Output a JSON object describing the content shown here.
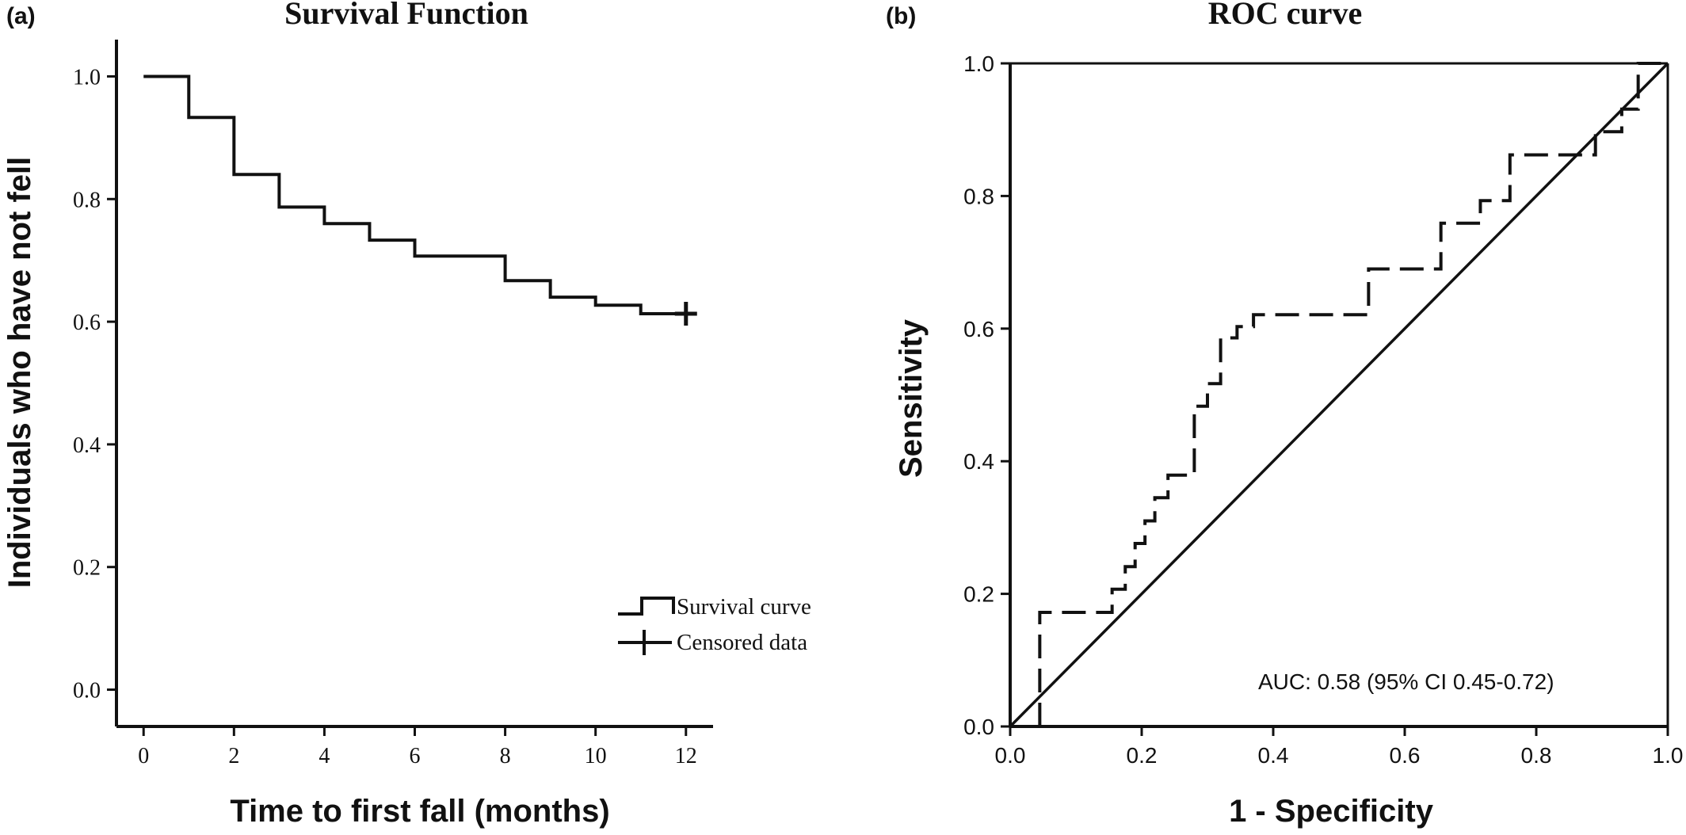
{
  "panel_labels": {
    "a": "(a)",
    "b": "(b)"
  },
  "colors": {
    "ink": "#111111",
    "background": "#ffffff"
  },
  "chart_data": [
    {
      "type": "line",
      "subtype": "step",
      "title": "Survival Function",
      "xlabel": "Time to first fall (months)",
      "ylabel": "Individuals who have not fell",
      "xlim": [
        -0.6,
        12.6
      ],
      "ylim": [
        -0.06,
        1.06
      ],
      "xticks": [
        0,
        2,
        4,
        6,
        8,
        10,
        12
      ],
      "yticks": [
        0.0,
        0.2,
        0.4,
        0.6,
        0.8,
        1.0
      ],
      "xtick_labels": [
        "0",
        "2",
        "4",
        "6",
        "8",
        "10",
        "12"
      ],
      "ytick_labels": [
        "0.0",
        "0.2",
        "0.4",
        "0.6",
        "0.8",
        "1.0"
      ],
      "grid": false,
      "legend_position": "bottom-right",
      "legend": [
        "Survival curve",
        "Censored data"
      ],
      "series": [
        {
          "name": "Survival curve",
          "x": [
            0,
            1,
            2,
            3,
            4,
            5,
            6,
            8,
            9,
            10,
            11,
            12
          ],
          "y": [
            1.0,
            0.933,
            0.84,
            0.787,
            0.76,
            0.733,
            0.707,
            0.667,
            0.64,
            0.627,
            0.613,
            0.613
          ]
        },
        {
          "name": "Censored data",
          "x": [
            12
          ],
          "y": [
            0.613
          ]
        }
      ]
    },
    {
      "type": "line",
      "subtype": "step",
      "title": "ROC curve",
      "xlabel": "1 - Specificity",
      "ylabel": "Sensitivity",
      "xlim": [
        0.0,
        1.0
      ],
      "ylim": [
        0.0,
        1.0
      ],
      "xticks": [
        0.0,
        0.2,
        0.4,
        0.6,
        0.8,
        1.0
      ],
      "yticks": [
        0.0,
        0.2,
        0.4,
        0.6,
        0.8,
        1.0
      ],
      "xtick_labels": [
        "0.0",
        "0.2",
        "0.4",
        "0.6",
        "0.8",
        "1.0"
      ],
      "ytick_labels": [
        "0.0",
        "0.2",
        "0.4",
        "0.6",
        "0.8",
        "1.0"
      ],
      "grid": false,
      "annotation": "AUC: 0.58 (95% CI 0.45-0.72)",
      "series": [
        {
          "style": "dashed",
          "x": [
            0.045,
            0.045,
            0.155,
            0.155,
            0.175,
            0.175,
            0.19,
            0.19,
            0.205,
            0.205,
            0.22,
            0.22,
            0.24,
            0.24,
            0.28,
            0.28,
            0.3,
            0.3,
            0.32,
            0.32,
            0.345,
            0.345,
            0.37,
            0.37,
            0.545,
            0.545,
            0.655,
            0.655,
            0.715,
            0.715,
            0.76,
            0.76,
            0.89,
            0.89,
            0.93,
            0.93,
            0.955,
            0.955,
            1.0
          ],
          "y": [
            0.0,
            0.172,
            0.172,
            0.207,
            0.207,
            0.241,
            0.241,
            0.276,
            0.276,
            0.31,
            0.31,
            0.345,
            0.345,
            0.379,
            0.379,
            0.483,
            0.483,
            0.517,
            0.517,
            0.586,
            0.586,
            0.603,
            0.603,
            0.621,
            0.621,
            0.69,
            0.69,
            0.759,
            0.759,
            0.793,
            0.793,
            0.862,
            0.862,
            0.897,
            0.897,
            0.931,
            0.931,
            1.0,
            1.0
          ]
        },
        {
          "style": "solid",
          "x": [
            0.0,
            1.0
          ],
          "y": [
            0.0,
            1.0
          ]
        }
      ]
    }
  ]
}
